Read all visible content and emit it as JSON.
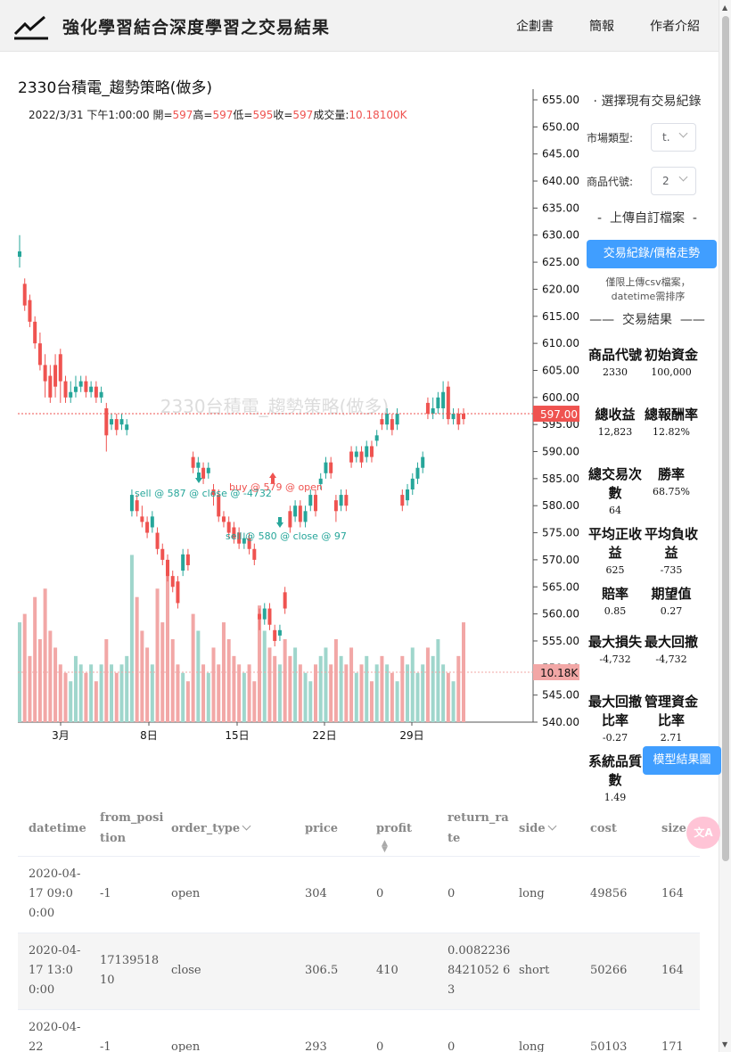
{
  "header": {
    "title": "強化學習結合深度學習之交易結果",
    "nav": [
      "企劃書",
      "簡報",
      "作者介紹"
    ]
  },
  "chart": {
    "title": "2330台積電_趨勢策略(做多)",
    "watermark": "2330台積電_趨勢策略(做多)",
    "ohlc": {
      "date": "2022/3/31 下午1:00:00",
      "open_label": "開=",
      "open": "597",
      "high_label": "高=",
      "high": "597",
      "low_label": "低=",
      "low": "595",
      "close_label": "收=",
      "close": "597",
      "vol_label": "成交量:",
      "vol": "10.18100K"
    },
    "price_ticks": [
      "655.00",
      "650.00",
      "645.00",
      "640.00",
      "635.00",
      "630.00",
      "625.00",
      "620.00",
      "615.00",
      "610.00",
      "605.00",
      "600.00",
      "595.00",
      "590.00",
      "585.00",
      "580.00",
      "575.00",
      "570.00",
      "565.00",
      "560.00",
      "555.00",
      "550.00",
      "545.00",
      "540.00"
    ],
    "x_ticks": [
      "3月",
      "8日",
      "15日",
      "22日",
      "29日"
    ],
    "last_price": "597.00",
    "last_volume": "10.18K",
    "annotations": [
      "sell @ 587 @ close @ -4732",
      "buy @ 579 @ open",
      "sell @ 580 @ close @ 97"
    ],
    "colors": {
      "up": "#26a69a",
      "down": "#ef5350",
      "vol_up": "#9fd6cc",
      "vol_down": "#f2a7a6"
    }
  },
  "chart_data": {
    "type": "candlestick",
    "price_axis": [
      540,
      655
    ],
    "x_ticks": [
      "3月",
      "8日",
      "15日",
      "22日",
      "29日"
    ],
    "last_price": 597.0,
    "last_volume": "10.18K"
  },
  "panel": {
    "select_title": "選擇現有交易紀錄",
    "market_label": "市場類型:",
    "market_value": "t.",
    "symbol_label": "商品代號:",
    "symbol_value": "2",
    "upload_title": "上傳自訂檔案",
    "upload_button": "交易紀錄/價格走勢",
    "upload_hint": "僅限上傳csv檔案，datetime需排序",
    "results_title": "交易結果",
    "metrics": [
      {
        "label": "商品代號",
        "value": "2330"
      },
      {
        "label": "初始資金",
        "value": "100,000"
      },
      {
        "label": "總收益",
        "value": "12,823"
      },
      {
        "label": "總報酬率",
        "value": "12.82%"
      },
      {
        "label": "總交易次數",
        "value": "64"
      },
      {
        "label": "勝率",
        "value": "68.75%"
      },
      {
        "label": "平均正收益",
        "value": "625"
      },
      {
        "label": "平均負收益",
        "value": "-735"
      },
      {
        "label": "賠率",
        "value": "0.85"
      },
      {
        "label": "期望值",
        "value": "0.27"
      },
      {
        "label": "最大損失",
        "value": "-4,732"
      },
      {
        "label": "最大回撤",
        "value": "-4,732"
      },
      {
        "label": "最大回撤比率",
        "value": "-0.27"
      },
      {
        "label": "管理資金比率",
        "value": "2.71"
      },
      {
        "label": "系統品質數",
        "value": "1.49"
      }
    ],
    "model_button": "模型結果圖"
  },
  "table": {
    "headers": [
      "datetime",
      "from_position",
      "order_type",
      "price",
      "profit",
      "return_rate",
      "side",
      "cost",
      "size"
    ],
    "rows": [
      [
        "2020-04-17 09:00:00",
        "-1",
        "open",
        "304",
        "0",
        "0",
        "long",
        "49856",
        "164"
      ],
      [
        "2020-04-17 13:00:00",
        "1713951810",
        "close",
        "306.5",
        "410",
        "0.00822368421052 63",
        "short",
        "50266",
        "164"
      ],
      [
        "2020-04-22",
        "-1",
        "open",
        "293",
        "0",
        "0",
        "long",
        "50103",
        "171"
      ]
    ]
  },
  "fab_label": "文A"
}
